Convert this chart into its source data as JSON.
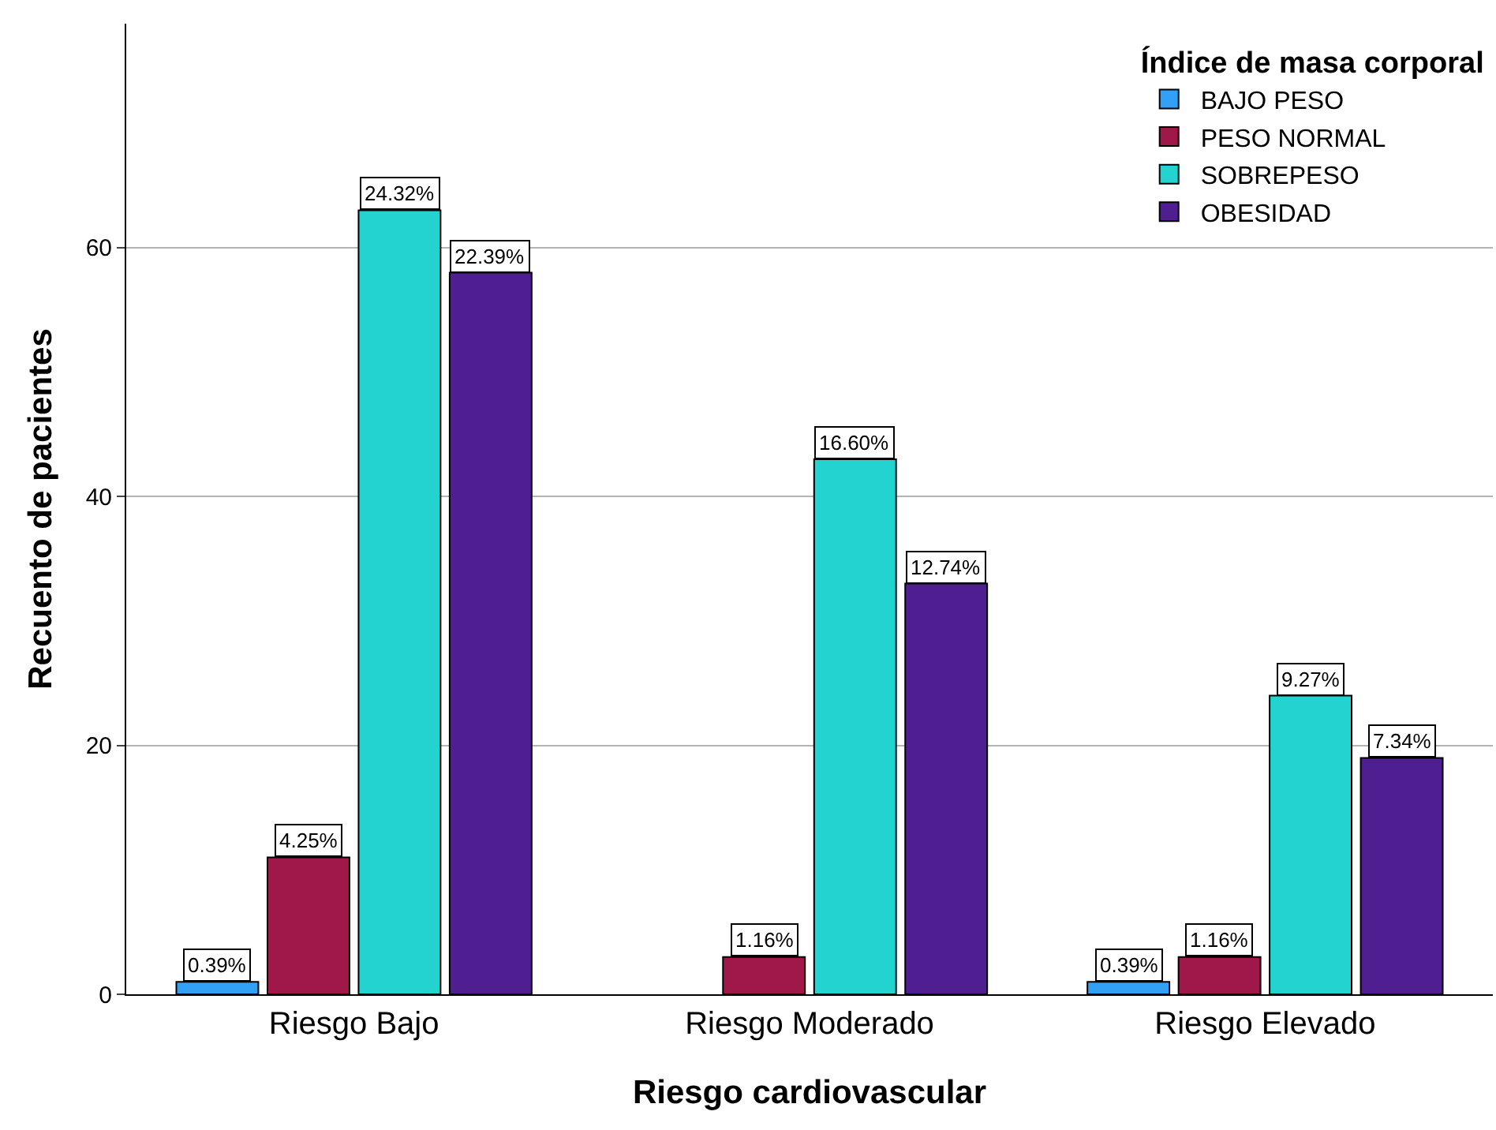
{
  "chart_data": {
    "type": "bar",
    "xlabel": "Riesgo cardiovascular",
    "ylabel": "Recuento de pacientes",
    "legend_title": "Índice de masa corporal",
    "categories": [
      "Riesgo Bajo",
      "Riesgo Moderado",
      "Riesgo Elevado"
    ],
    "series": [
      {
        "name": "BAJO PESO",
        "color": "#31a0f5",
        "values": [
          1,
          null,
          1
        ]
      },
      {
        "name": "PESO NORMAL",
        "color": "#a0174a",
        "values": [
          11,
          3,
          3
        ]
      },
      {
        "name": "SOBREPESO",
        "color": "#22d3cf",
        "values": [
          63,
          43,
          24
        ]
      },
      {
        "name": "OBESIDAD",
        "color": "#4f1f91",
        "values": [
          58,
          33,
          19
        ]
      }
    ],
    "annotations": [
      "0.39%",
      "4.25%",
      "24.32%",
      "22.39%",
      "1.16%",
      "16.60%",
      "12.74%",
      "0.39%",
      "1.16%",
      "9.27%",
      "7.34%"
    ],
    "ylim": [
      0,
      78
    ],
    "yticks": [
      0,
      20,
      40,
      60
    ],
    "grid": "y",
    "legend": "top right"
  }
}
